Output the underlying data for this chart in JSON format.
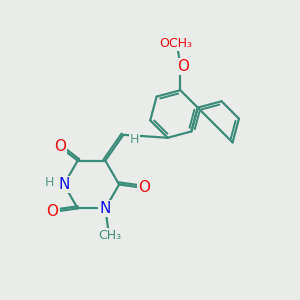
{
  "bg_color": "#eaece9",
  "bond_color": "#3d8b7a",
  "bond_width": 1.6,
  "atom_colors": {
    "O": "#ee1111",
    "N": "#1111ee",
    "H": "#5a9a8a",
    "C": "#3d8b7a"
  },
  "font_size_heavy": 11,
  "font_size_h": 9,
  "font_size_me": 9
}
